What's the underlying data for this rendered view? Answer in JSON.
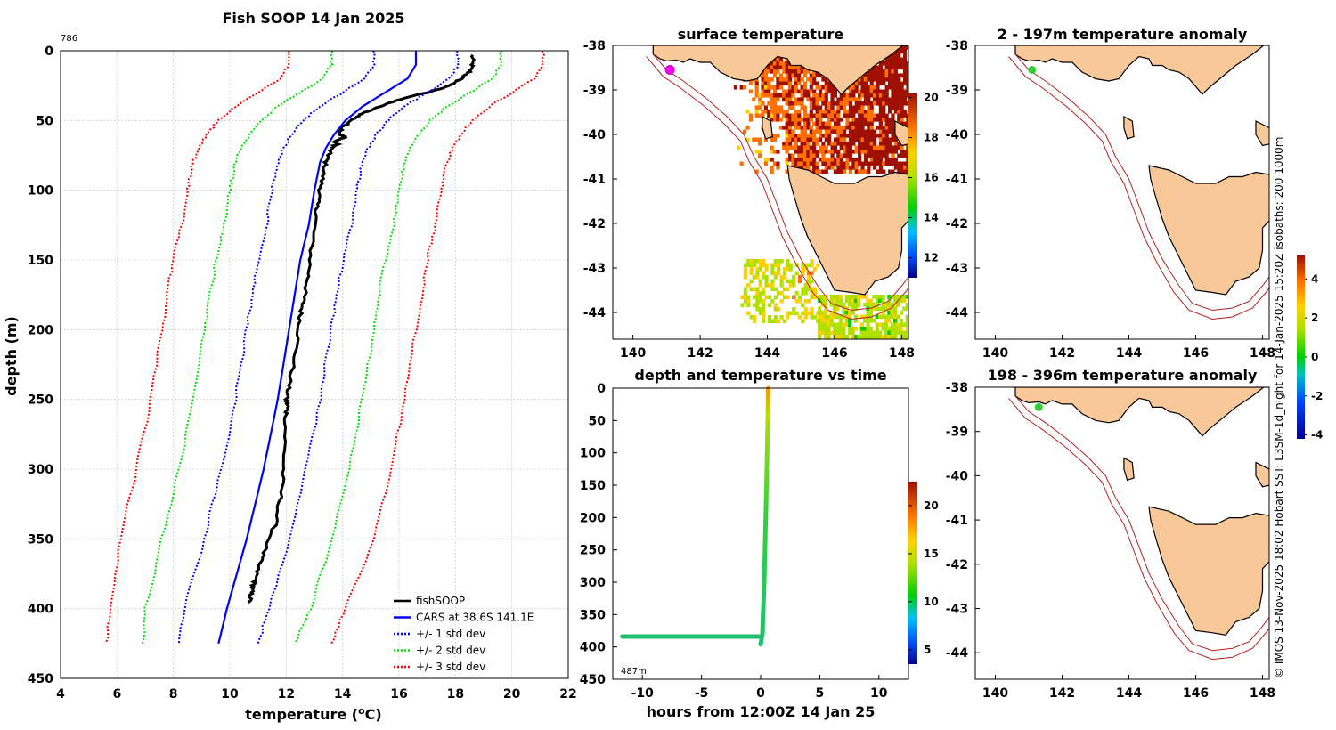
{
  "page": {
    "main_title": "Fish SOOP 14 Jan 2025",
    "profile_count": "786",
    "credit": "© IMOS 13-Nov-2025 18:02 Hobart SST: L3SM-1d_night for 14-Jan-2025 15:20Z isobaths: 200  1000m"
  },
  "colors": {
    "profile": "#000000",
    "cars": "#0000ff",
    "std1": "#0000ff",
    "std2": "#00e000",
    "std3": "#ff0000",
    "land": "#f8c898",
    "isobath": "#b22222",
    "grid": "#cccccc"
  },
  "chart_data": [
    {
      "id": "profile",
      "type": "line",
      "title": "Fish SOOP 14 Jan 2025",
      "xlabel": "temperature (°C)",
      "ylabel": "depth (m)",
      "xlim": [
        4,
        22
      ],
      "ylim": [
        450,
        0
      ],
      "xticks": [
        4,
        6,
        8,
        10,
        12,
        14,
        16,
        18,
        20,
        22
      ],
      "yticks": [
        0,
        50,
        100,
        150,
        200,
        250,
        300,
        350,
        400,
        450
      ],
      "grid": true,
      "legend_position": "bottom-right",
      "series": [
        {
          "name": "fishSOOP",
          "style": "solid-thick",
          "color": "#000000",
          "depth": [
            3,
            10,
            15,
            20,
            25,
            30,
            35,
            40,
            45,
            50,
            55,
            60,
            62,
            65,
            67,
            70,
            75,
            80,
            90,
            100,
            110,
            120,
            140,
            160,
            170,
            180,
            190,
            200,
            220,
            240,
            250,
            255,
            260,
            280,
            300,
            320,
            340,
            360,
            370,
            380,
            385,
            390,
            396
          ],
          "temp": [
            18.6,
            18.6,
            18.5,
            18.2,
            17.8,
            17,
            16,
            15.3,
            14.7,
            14.3,
            14,
            13.9,
            14.1,
            13.7,
            13.8,
            13.6,
            13.5,
            13.4,
            13.3,
            13.2,
            13.1,
            13.05,
            12.9,
            12.8,
            12.7,
            12.6,
            12.5,
            12.45,
            12.3,
            12.1,
            12.0,
            12.05,
            12.0,
            11.95,
            11.9,
            11.8,
            11.6,
            11.2,
            11.0,
            10.9,
            10.8,
            10.75,
            10.7
          ]
        },
        {
          "name": "CARS at 38.6S 141.1E",
          "style": "solid",
          "color": "#0000ff",
          "depth": [
            0,
            10,
            20,
            30,
            40,
            50,
            60,
            70,
            80,
            90,
            100,
            125,
            150,
            175,
            200,
            250,
            300,
            350,
            400,
            425
          ],
          "temp": [
            16.6,
            16.6,
            16.3,
            15.5,
            14.7,
            14.1,
            13.7,
            13.4,
            13.2,
            13.1,
            13.0,
            12.8,
            12.5,
            12.3,
            12.1,
            11.7,
            11.2,
            10.6,
            9.9,
            9.6
          ]
        },
        {
          "name": "+/- 1 std dev",
          "style": "dotted",
          "color": "#0000ff",
          "depth": [
            0,
            10,
            20,
            30,
            40,
            50,
            60,
            70,
            80,
            90,
            100,
            125,
            150,
            175,
            200,
            250,
            300,
            350,
            400,
            425
          ],
          "lower": [
            15.1,
            15.1,
            14.8,
            14.0,
            13.2,
            12.6,
            12.2,
            11.9,
            11.7,
            11.6,
            11.5,
            11.3,
            11.0,
            10.8,
            10.6,
            10.2,
            9.7,
            9.1,
            8.4,
            8.2
          ],
          "upper": [
            18.1,
            18.1,
            17.8,
            17.0,
            16.2,
            15.6,
            15.2,
            14.9,
            14.7,
            14.6,
            14.5,
            14.3,
            14.0,
            13.8,
            13.6,
            13.2,
            12.7,
            12.1,
            11.4,
            11.0
          ]
        },
        {
          "name": "+/- 2 std dev",
          "style": "dotted",
          "color": "#00e000",
          "depth": [
            0,
            10,
            20,
            30,
            40,
            50,
            60,
            70,
            80,
            90,
            100,
            125,
            150,
            175,
            200,
            250,
            300,
            350,
            400,
            425
          ],
          "lower": [
            13.6,
            13.6,
            13.3,
            12.5,
            11.7,
            11.1,
            10.7,
            10.4,
            10.2,
            10.1,
            10.0,
            9.8,
            9.5,
            9.3,
            9.1,
            8.7,
            8.2,
            7.6,
            7.0,
            6.9
          ],
          "upper": [
            19.6,
            19.6,
            19.3,
            18.5,
            17.7,
            17.1,
            16.7,
            16.4,
            16.2,
            16.1,
            16.0,
            15.8,
            15.5,
            15.3,
            15.1,
            14.7,
            14.2,
            13.6,
            12.9,
            12.3
          ]
        },
        {
          "name": "+/- 3 std dev",
          "style": "dotted",
          "color": "#ff0000",
          "depth": [
            0,
            10,
            20,
            30,
            40,
            50,
            60,
            70,
            80,
            90,
            100,
            125,
            150,
            175,
            200,
            250,
            300,
            350,
            400,
            425
          ],
          "lower": [
            12.1,
            12.1,
            11.8,
            11.0,
            10.2,
            9.6,
            9.2,
            8.9,
            8.7,
            8.6,
            8.5,
            8.3,
            8.0,
            7.8,
            7.6,
            7.2,
            6.7,
            6.1,
            5.8,
            5.6
          ],
          "upper": [
            21.1,
            21.1,
            20.8,
            20.0,
            19.2,
            18.6,
            18.2,
            17.9,
            17.7,
            17.6,
            17.5,
            17.3,
            17.0,
            16.8,
            16.6,
            16.2,
            15.7,
            15.1,
            14.1,
            13.6
          ]
        }
      ]
    },
    {
      "id": "sst",
      "type": "heatmap",
      "title": "surface temperature",
      "xlim": [
        139.4,
        148.2
      ],
      "ylim": [
        -44.6,
        -38
      ],
      "xticks": [
        140,
        142,
        144,
        146,
        148
      ],
      "yticks": [
        -38,
        -39,
        -40,
        -41,
        -42,
        -43,
        -44
      ],
      "colorbar": {
        "range": [
          11,
          20.2
        ],
        "ticks": [
          12,
          14,
          16,
          18,
          20
        ]
      },
      "ship_position": {
        "lon": 141.1,
        "lat": -38.55,
        "color": "#ff00ff"
      }
    },
    {
      "id": "anom1",
      "type": "heatmap",
      "title": "2 - 197m temperature anomaly",
      "xlim": [
        139.4,
        148.2
      ],
      "ylim": [
        -44.6,
        -38
      ],
      "xticks": [
        140,
        142,
        144,
        146,
        148
      ],
      "yticks": [
        -38,
        -39,
        -40,
        -41,
        -42,
        -43,
        -44
      ],
      "ship_position": {
        "lon": 141.1,
        "lat": -38.55,
        "color": "#30d030"
      }
    },
    {
      "id": "anom2",
      "type": "heatmap",
      "title": "198 - 396m temperature anomaly",
      "xlim": [
        139.4,
        148.2
      ],
      "ylim": [
        -44.6,
        -38
      ],
      "xticks": [
        140,
        142,
        144,
        146,
        148
      ],
      "yticks": [
        -38,
        -39,
        -40,
        -41,
        -42,
        -43,
        -44
      ],
      "ship_position": {
        "lon": 141.3,
        "lat": -38.45,
        "color": "#30d030"
      }
    },
    {
      "id": "anom_colorbar",
      "type": "heatmap",
      "colorbar": {
        "range": [
          -4.2,
          5.2
        ],
        "ticks": [
          -4,
          -2,
          0,
          2,
          4
        ]
      }
    },
    {
      "id": "timeseries",
      "type": "scatter",
      "title": "depth and temperature vs time",
      "xlabel": "hours from 12:00Z 14 Jan 25",
      "xlim": [
        -12.5,
        12.5
      ],
      "ylim": [
        450,
        0
      ],
      "xticks": [
        -10,
        -5,
        0,
        5,
        10
      ],
      "yticks": [
        0,
        50,
        100,
        150,
        200,
        250,
        300,
        350,
        400,
        450
      ],
      "annotation": "487m",
      "colorbar": {
        "range": [
          3.5,
          22.5
        ],
        "ticks": [
          5,
          10,
          15,
          20
        ]
      },
      "segments": [
        {
          "hours": [
            -11.7,
            0.0
          ],
          "depth": [
            384,
            384
          ],
          "temp": 13
        },
        {
          "hours": [
            0.0,
            0.15,
            0.3,
            0.5,
            0.6,
            0.65
          ],
          "depth": [
            396,
            380,
            300,
            150,
            50,
            0
          ],
          "temp_start": 12.5,
          "temp_end": 17.5
        }
      ]
    }
  ]
}
